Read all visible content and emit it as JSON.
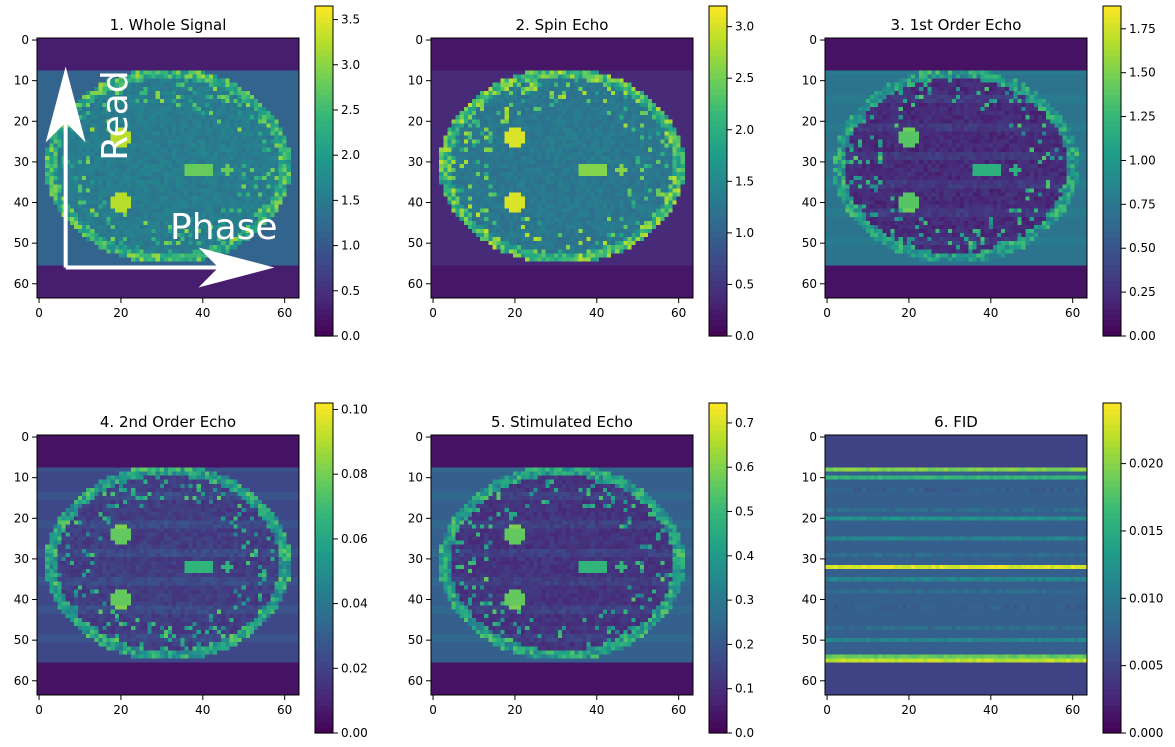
{
  "colors": {
    "viridis": [
      "#440154",
      "#482878",
      "#3e4989",
      "#31688e",
      "#26828e",
      "#1f9e89",
      "#35b779",
      "#6ece58",
      "#b5de2b",
      "#fde725"
    ],
    "annotation": "#ffffff"
  },
  "chart_data": [
    {
      "type": "heatmap",
      "title": "1. Whole Signal",
      "xlim": [
        0,
        63
      ],
      "ylim": [
        63,
        0
      ],
      "xticks": [
        0,
        20,
        40,
        60
      ],
      "yticks": [
        0,
        10,
        20,
        30,
        40,
        50,
        60
      ],
      "colorbar": {
        "min": 0,
        "max": 3.65,
        "ticks": [
          "0.0",
          "0.5",
          "1.0",
          "1.5",
          "2.0",
          "2.5",
          "3.0",
          "3.5"
        ]
      },
      "image": {
        "pattern": "brain",
        "rows": 64,
        "cols": 64,
        "background": 0.08,
        "band_rows": [
          8,
          55
        ],
        "band_level": 0.32,
        "tissue": 0.42,
        "bright": 0.85,
        "stripes": 0.0
      },
      "annotations": [
        {
          "text": "Read",
          "kind": "read-arrow"
        },
        {
          "text": "Phase",
          "kind": "phase-arrow"
        }
      ]
    },
    {
      "type": "heatmap",
      "title": "2. Spin Echo",
      "xlim": [
        0,
        63
      ],
      "ylim": [
        63,
        0
      ],
      "xticks": [
        0,
        20,
        40,
        60
      ],
      "yticks": [
        0,
        10,
        20,
        30,
        40,
        50,
        60
      ],
      "colorbar": {
        "min": 0,
        "max": 3.2,
        "ticks": [
          "0.0",
          "0.5",
          "1.0",
          "1.5",
          "2.0",
          "2.5",
          "3.0"
        ]
      },
      "image": {
        "pattern": "brain",
        "rows": 64,
        "cols": 64,
        "background": 0.06,
        "band_rows": [
          8,
          55
        ],
        "band_level": 0.12,
        "tissue": 0.4,
        "bright": 0.9,
        "stripes": 0.0
      }
    },
    {
      "type": "heatmap",
      "title": "3. 1st Order Echo",
      "xlim": [
        0,
        63
      ],
      "ylim": [
        63,
        0
      ],
      "xticks": [
        0,
        20,
        40,
        60
      ],
      "yticks": [
        0,
        10,
        20,
        30,
        40,
        50,
        60
      ],
      "colorbar": {
        "min": 0,
        "max": 1.88,
        "ticks": [
          "0.00",
          "0.25",
          "0.50",
          "0.75",
          "1.00",
          "1.25",
          "1.50",
          "1.75"
        ]
      },
      "image": {
        "pattern": "brain",
        "rows": 64,
        "cols": 64,
        "background": 0.05,
        "band_rows": [
          8,
          55
        ],
        "band_level": 0.38,
        "tissue": 0.12,
        "bright": 0.7,
        "stripes": 0.3
      }
    },
    {
      "type": "heatmap",
      "title": "4. 2nd Order Echo",
      "xlim": [
        0,
        63
      ],
      "ylim": [
        63,
        0
      ],
      "xticks": [
        0,
        20,
        40,
        60
      ],
      "yticks": [
        0,
        10,
        20,
        30,
        40,
        50,
        60
      ],
      "colorbar": {
        "min": 0,
        "max": 0.102,
        "ticks": [
          "0.00",
          "0.02",
          "0.04",
          "0.06",
          "0.08",
          "0.10"
        ]
      },
      "image": {
        "pattern": "brain",
        "rows": 64,
        "cols": 64,
        "background": 0.05,
        "band_rows": [
          8,
          55
        ],
        "band_level": 0.22,
        "tissue": 0.18,
        "bright": 0.72,
        "stripes": 0.32
      }
    },
    {
      "type": "heatmap",
      "title": "5. Stimulated Echo",
      "xlim": [
        0,
        63
      ],
      "ylim": [
        63,
        0
      ],
      "xticks": [
        0,
        20,
        40,
        60
      ],
      "yticks": [
        0,
        10,
        20,
        30,
        40,
        50,
        60
      ],
      "colorbar": {
        "min": 0,
        "max": 0.745,
        "ticks": [
          "0.0",
          "0.1",
          "0.2",
          "0.3",
          "0.4",
          "0.5",
          "0.6",
          "0.7"
        ]
      },
      "image": {
        "pattern": "brain",
        "rows": 64,
        "cols": 64,
        "background": 0.05,
        "band_rows": [
          8,
          55
        ],
        "band_level": 0.3,
        "tissue": 0.15,
        "bright": 0.72,
        "stripes": 0.28
      }
    },
    {
      "type": "heatmap",
      "title": "6. FID",
      "xlim": [
        0,
        63
      ],
      "ylim": [
        63,
        0
      ],
      "xticks": [
        0,
        20,
        40,
        60
      ],
      "yticks": [
        0,
        10,
        20,
        30,
        40,
        50,
        60
      ],
      "colorbar": {
        "min": 0,
        "max": 0.0245,
        "ticks": [
          "0.000",
          "0.005",
          "0.010",
          "0.015",
          "0.020"
        ]
      },
      "image": {
        "pattern": "stripes",
        "rows": 64,
        "cols": 64,
        "background": 0.05,
        "band_rows": [
          8,
          55
        ],
        "band_level": 0.3,
        "tissue": 0.0,
        "bright": 0.0,
        "stripes": 1.0,
        "stripe_rows": [
          {
            "row": 8,
            "value": 0.8
          },
          {
            "row": 10,
            "value": 0.65
          },
          {
            "row": 13,
            "value": 0.3
          },
          {
            "row": 18,
            "value": 0.35
          },
          {
            "row": 20,
            "value": 0.5
          },
          {
            "row": 25,
            "value": 0.45
          },
          {
            "row": 29,
            "value": 0.35
          },
          {
            "row": 32,
            "value": 0.95
          },
          {
            "row": 35,
            "value": 0.45
          },
          {
            "row": 38,
            "value": 0.35
          },
          {
            "row": 42,
            "value": 0.3
          },
          {
            "row": 47,
            "value": 0.35
          },
          {
            "row": 50,
            "value": 0.45
          },
          {
            "row": 54,
            "value": 0.75
          },
          {
            "row": 55,
            "value": 0.9
          }
        ]
      }
    }
  ]
}
